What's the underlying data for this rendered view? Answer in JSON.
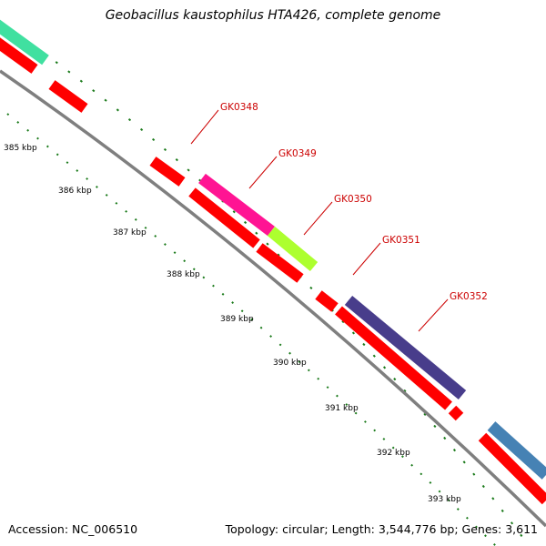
{
  "title": "Geobacillus kaustophilus HTA426, complete genome",
  "footer": {
    "accession": "Accession: NC_006510",
    "summary": "Topology: circular; Length: 3,544,776 bp; Genes: 3,611"
  },
  "colors": {
    "backbone": "#7f7f7f",
    "tick": "#1a7a1a",
    "gene_default": "#ff0000",
    "label": "#cc0000"
  },
  "kbp_labels": [
    "385 kbp",
    "386 kbp",
    "387 kbp",
    "388 kbp",
    "389 kbp",
    "390 kbp",
    "391 kbp",
    "392 kbp",
    "393 kbp"
  ],
  "gene_labels": [
    "GK0348",
    "GK0349",
    "GK0350",
    "GK0351",
    "GK0352"
  ],
  "highlight_colors": [
    "#ff1493",
    "#adff2f",
    "#483d8b",
    "#4682b4",
    "#40e0a0"
  ]
}
